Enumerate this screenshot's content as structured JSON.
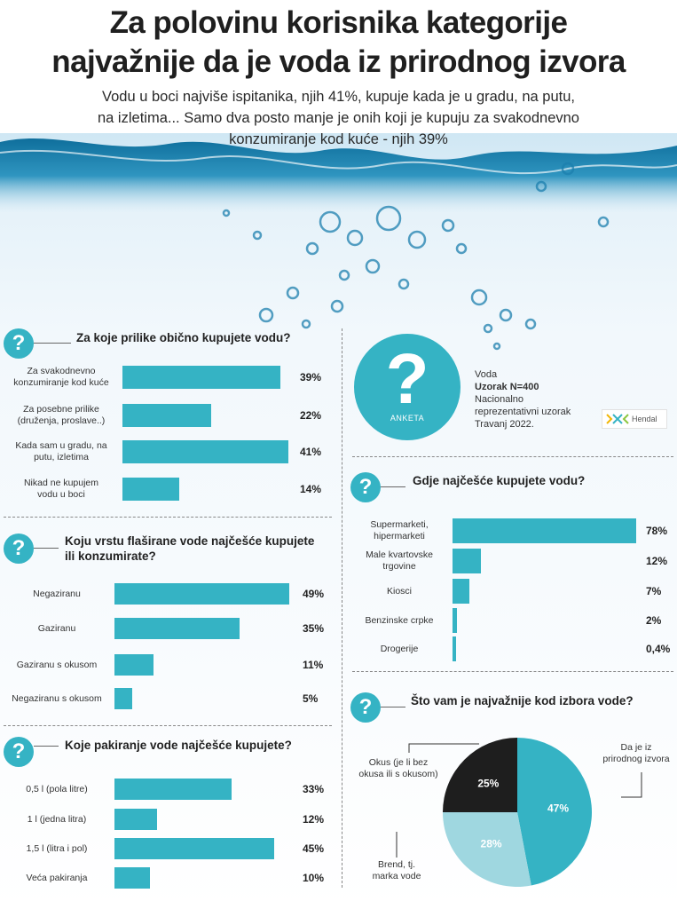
{
  "headline": {
    "line1": "Za polovinu korisnika kategorije",
    "line2": "najvažnije da je voda iz prirodnog izvora"
  },
  "subhead": {
    "line1": "Vodu u boci najviše ispitanika, njih 41%, kupuje kada je u gradu, na putu,",
    "line2": "na izletima... Samo dva posto manje je onih koji je kupuju za svakodnevno",
    "line3": "konzumiranje kod kuće - njih 39%"
  },
  "survey": {
    "icon_text": "?",
    "badge": "ANKETA",
    "line1": "Voda",
    "line2": "Uzorak N=400",
    "line3": "Nacionalno",
    "line4": "reprezentativni uzorak",
    "line5": "Travanj 2022.",
    "logo": "Hendal"
  },
  "chart_data": [
    {
      "type": "bar",
      "orientation": "horizontal",
      "title": "Za koje prilike obično kupujete vodu?",
      "categories": [
        [
          "Za svakodnevno",
          "konzumiranje kod kuće"
        ],
        [
          "Za posebne prilike",
          "(druženja, proslave..)"
        ],
        [
          "Kada sam u gradu, na",
          "putu, izletima"
        ],
        [
          "Nikad ne kupujem",
          "vodu u boci"
        ]
      ],
      "values": [
        39,
        22,
        41,
        14
      ],
      "value_labels": [
        "39%",
        "22%",
        "41%",
        "14%"
      ],
      "xlim": [
        0,
        41
      ]
    },
    {
      "type": "bar",
      "orientation": "horizontal",
      "title": [
        "Koju vrstu flaširane vode najčešće kupujete",
        "ili konzumirate?"
      ],
      "categories": [
        [
          "Negaziranu"
        ],
        [
          "Gaziranu"
        ],
        [
          "Gaziranu s okusom"
        ],
        [
          "Negaziranu s okusom"
        ]
      ],
      "values": [
        49,
        35,
        11,
        5
      ],
      "value_labels": [
        "49%",
        "35%",
        "11%",
        "5%"
      ],
      "xlim": [
        0,
        49
      ]
    },
    {
      "type": "bar",
      "orientation": "horizontal",
      "title": "Koje pakiranje vode najčešće kupujete?",
      "categories": [
        [
          "0,5 l (pola litre)"
        ],
        [
          "1 l (jedna litra)"
        ],
        [
          "1,5 l (litra i pol)"
        ],
        [
          "Veća pakiranja"
        ]
      ],
      "values": [
        33,
        12,
        45,
        10
      ],
      "value_labels": [
        "33%",
        "12%",
        "45%",
        "10%"
      ],
      "xlim": [
        0,
        45
      ]
    },
    {
      "type": "bar",
      "orientation": "horizontal",
      "title": "Gdje najčešće kupujete vodu?",
      "categories": [
        [
          "Supermarketi,",
          "hipermarketi"
        ],
        [
          "Male kvartovske",
          "trgovine"
        ],
        [
          "Kiosci"
        ],
        [
          "Benzinske crpke"
        ],
        [
          "Drogerije"
        ]
      ],
      "values": [
        78,
        12,
        7,
        2,
        0.4
      ],
      "value_labels": [
        "78%",
        "12%",
        "7%",
        "2%",
        "0,4%"
      ],
      "xlim": [
        0,
        78
      ]
    },
    {
      "type": "pie",
      "title": "Što vam je najvažnije kod izbora vode?",
      "slices": [
        {
          "label": [
            "Da je iz",
            "prirodnog izvora"
          ],
          "value": 47,
          "value_label": "47%",
          "color": "#35b3c4"
        },
        {
          "label": [
            "Brend, tj.",
            "marka vode"
          ],
          "value": 28,
          "value_label": "28%",
          "color": "#9fd7e0"
        },
        {
          "label": [
            "Okus (je li bez",
            "okusa ili s okusom)"
          ],
          "value": 25,
          "value_label": "25%",
          "color": "#1e1e1e"
        }
      ]
    }
  ],
  "colors": {
    "accent": "#35b3c4",
    "accent_light": "#9fd7e0",
    "dark": "#1e1e1e"
  }
}
